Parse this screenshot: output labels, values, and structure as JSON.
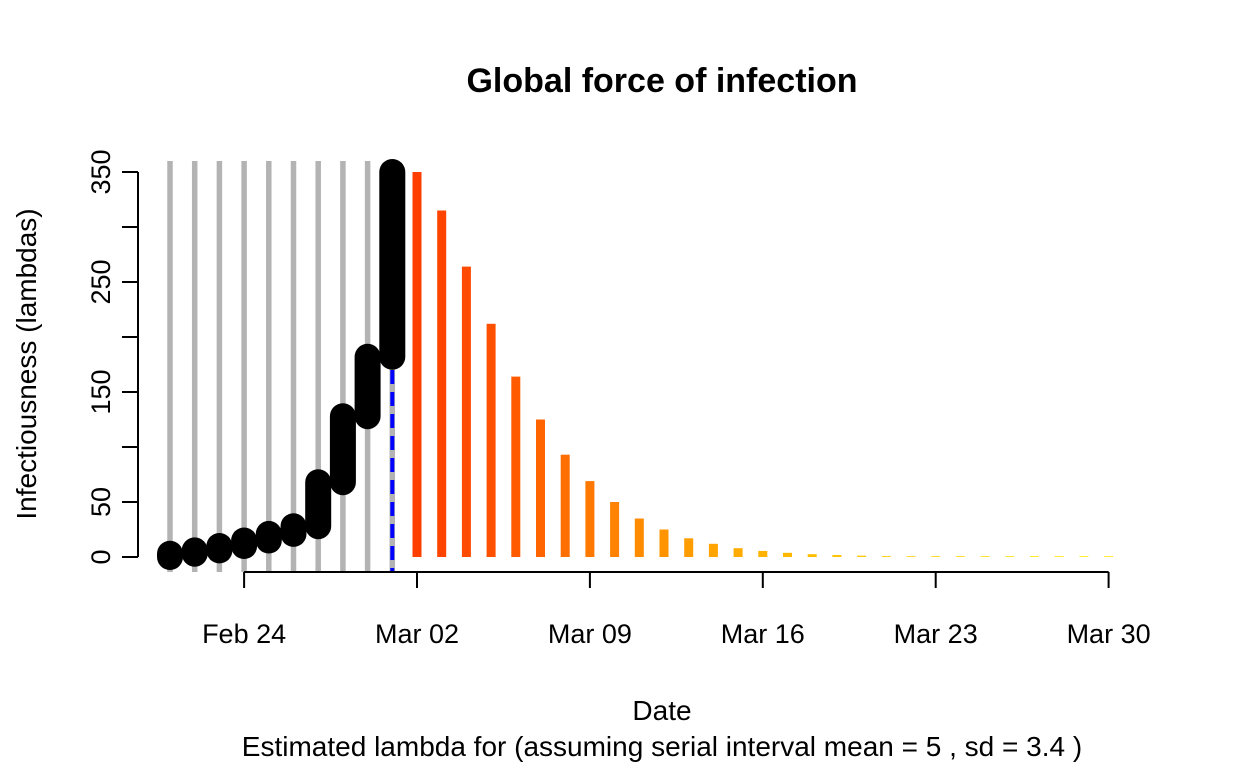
{
  "chart_data": {
    "type": "bar",
    "title": "Global force of infection",
    "xlabel": "Date",
    "ylabel": "Infectiousness (lambdas)",
    "subtitle": "Estimated lambda for  (assuming serial interval mean = 5 , sd = 3.4 )",
    "xlim": [
      "2020-02-20",
      "2020-03-30"
    ],
    "ylim": [
      0,
      360
    ],
    "x_ticks": [
      {
        "date": "2020-02-24",
        "label": "Feb 24"
      },
      {
        "date": "2020-03-02",
        "label": "Mar 02"
      },
      {
        "date": "2020-03-09",
        "label": "Mar 09"
      },
      {
        "date": "2020-03-16",
        "label": "Mar 16"
      },
      {
        "date": "2020-03-23",
        "label": "Mar 23"
      },
      {
        "date": "2020-03-30",
        "label": "Mar 30"
      }
    ],
    "y_ticks": [
      0,
      50,
      100,
      150,
      200,
      250,
      300,
      350
    ],
    "y_tick_labels": [
      "0",
      "50",
      "150",
      "250",
      "350"
    ],
    "observed_incidence": {
      "color": "#b3b3b3",
      "dates": [
        "2020-02-21",
        "2020-02-22",
        "2020-02-23",
        "2020-02-24",
        "2020-02-25",
        "2020-02-26",
        "2020-02-27",
        "2020-02-28",
        "2020-02-29",
        "2020-03-01"
      ],
      "values": [
        360,
        360,
        360,
        360,
        360,
        360,
        360,
        360,
        360,
        360
      ]
    },
    "lambda_history": {
      "color": "#000000",
      "dates": [
        "2020-02-21",
        "2020-02-22",
        "2020-02-23",
        "2020-02-24",
        "2020-02-25",
        "2020-02-26",
        "2020-02-27",
        "2020-02-28",
        "2020-02-29",
        "2020-03-01"
      ],
      "low": [
        0,
        3,
        6,
        10,
        15,
        21,
        28,
        68,
        128,
        182
      ],
      "high": [
        3,
        6,
        10,
        15,
        21,
        28,
        68,
        128,
        182,
        350
      ]
    },
    "lambda_projection": {
      "dates": [
        "2020-03-02",
        "2020-03-03",
        "2020-03-04",
        "2020-03-05",
        "2020-03-06",
        "2020-03-07",
        "2020-03-08",
        "2020-03-09",
        "2020-03-10",
        "2020-03-11",
        "2020-03-12",
        "2020-03-13",
        "2020-03-14",
        "2020-03-15",
        "2020-03-16",
        "2020-03-17",
        "2020-03-18",
        "2020-03-19",
        "2020-03-20",
        "2020-03-21",
        "2020-03-22",
        "2020-03-23",
        "2020-03-24",
        "2020-03-25",
        "2020-03-26",
        "2020-03-27",
        "2020-03-28",
        "2020-03-29",
        "2020-03-30"
      ],
      "values": [
        350,
        315,
        264,
        212,
        164,
        125,
        93,
        69,
        50,
        35,
        25,
        17,
        12,
        8,
        5.5,
        3.8,
        2.6,
        1.8,
        1.2,
        0.8,
        0.6,
        0.4,
        0.3,
        0.2,
        0.1,
        0.1,
        0.1,
        0.05,
        0.05
      ],
      "colors": [
        "#ff3f00",
        "#ff4400",
        "#ff4a00",
        "#ff5000",
        "#ff5a00",
        "#ff6400",
        "#ff6e00",
        "#ff7800",
        "#ff8200",
        "#ff8c00",
        "#ff9400",
        "#ff9c00",
        "#ffa400",
        "#ffab00",
        "#ffb200",
        "#ffb800",
        "#ffbe00",
        "#ffc300",
        "#ffc800",
        "#ffcd00",
        "#ffd100",
        "#ffd500",
        "#ffd900",
        "#ffdc00",
        "#ffdf00",
        "#ffe200",
        "#ffe400",
        "#ffe600",
        "#ffe800"
      ]
    },
    "current_date_line": {
      "date": "2020-03-01",
      "color": "#0000ff",
      "style": "dashed"
    },
    "grid": false,
    "legend": "none"
  }
}
